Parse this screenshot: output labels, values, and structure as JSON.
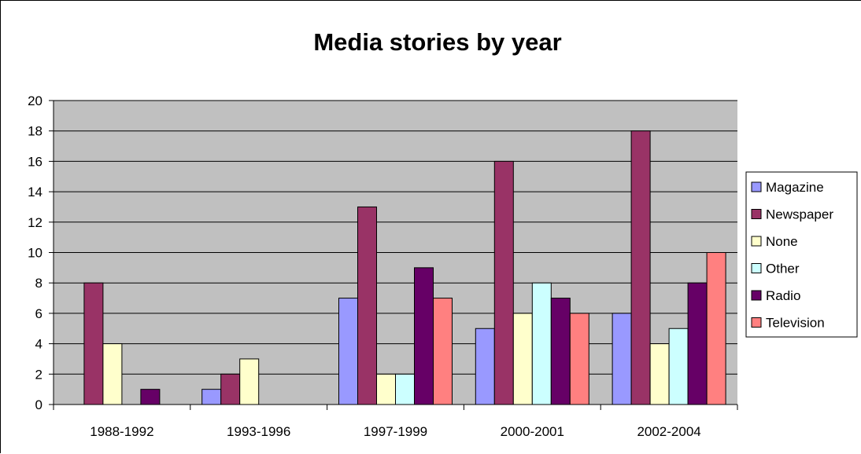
{
  "chart_data": {
    "type": "bar",
    "title": "Media stories by year",
    "xlabel": "",
    "ylabel": "",
    "categories": [
      "1988-1992",
      "1993-1996",
      "1997-1999",
      "2000-2001",
      "2002-2004"
    ],
    "series": [
      {
        "name": "Magazine",
        "color": "#9999FF",
        "values": [
          0,
          1,
          7,
          5,
          6
        ]
      },
      {
        "name": "Newspaper",
        "color": "#993366",
        "values": [
          8,
          2,
          13,
          16,
          18
        ]
      },
      {
        "name": "None",
        "color": "#FFFFCC",
        "values": [
          4,
          3,
          2,
          6,
          4
        ]
      },
      {
        "name": "Other",
        "color": "#CCFFFF",
        "values": [
          0,
          0,
          2,
          8,
          5
        ]
      },
      {
        "name": "Radio",
        "color": "#660066",
        "values": [
          1,
          0,
          9,
          7,
          8
        ]
      },
      {
        "name": "Television",
        "color": "#FF8080",
        "values": [
          0,
          0,
          7,
          6,
          10
        ]
      }
    ],
    "ylim": [
      0,
      20
    ],
    "yticks": [
      "0",
      "2",
      "4",
      "6",
      "8",
      "10",
      "12",
      "14",
      "16",
      "18",
      "20"
    ],
    "grid": true,
    "plot_background": "#C0C0C0",
    "legend_position": "right"
  }
}
